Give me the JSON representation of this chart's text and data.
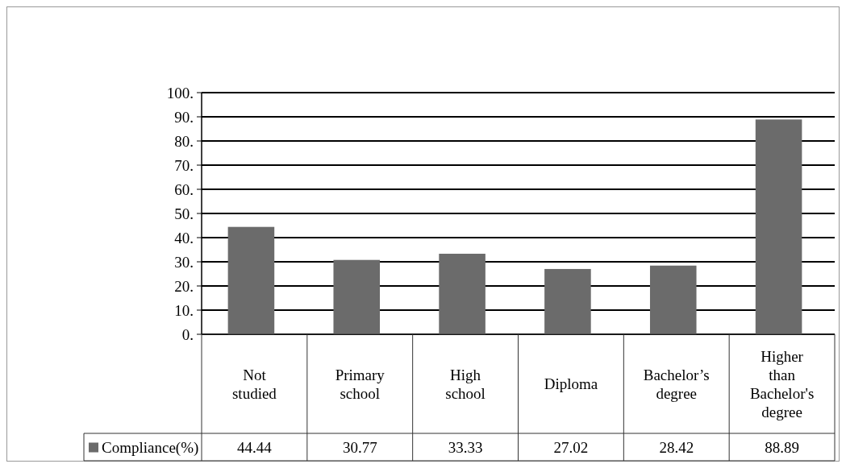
{
  "chart_data": {
    "type": "bar",
    "categories": [
      "Not studied",
      "Primary school",
      "High school",
      "Diploma",
      "Bachelor’s degree",
      "Higher than Bachelor's degree"
    ],
    "series": [
      {
        "name": "Compliance(%)",
        "color": "#6b6b6b",
        "values": [
          44.44,
          30.77,
          33.33,
          27.02,
          28.42,
          88.89
        ]
      }
    ],
    "ylim": [
      0,
      100
    ],
    "yticks": [
      {
        "value": 0,
        "label": "0."
      },
      {
        "value": 10,
        "label": "10."
      },
      {
        "value": 20,
        "label": "20."
      },
      {
        "value": 30,
        "label": "30."
      },
      {
        "value": 40,
        "label": "40."
      },
      {
        "value": 50,
        "label": "50."
      },
      {
        "value": 60,
        "label": "60."
      },
      {
        "value": 70,
        "label": "70."
      },
      {
        "value": 80,
        "label": "80."
      },
      {
        "value": 90,
        "label": "90."
      },
      {
        "value": 100,
        "label": "100."
      }
    ],
    "grid": "y",
    "legend": "bottom",
    "data_labels": true
  }
}
